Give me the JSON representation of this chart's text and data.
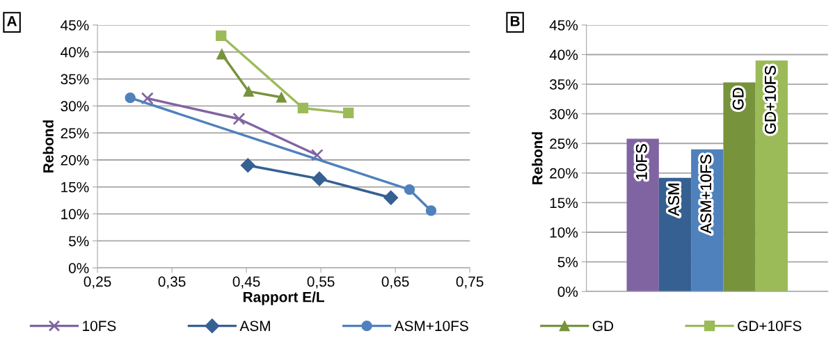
{
  "chart_data": [
    {
      "type": "line",
      "xlabel": "Rapport E/L",
      "ylabel": "Rebond",
      "annotations": [
        "A"
      ],
      "xlim": [
        0.25,
        0.75
      ],
      "xticks": [
        {
          "value": 0.25,
          "label": "0,25"
        },
        {
          "value": 0.35,
          "label": "0,35"
        },
        {
          "value": 0.45,
          "label": "0,45"
        },
        {
          "value": 0.55,
          "label": "0,55"
        },
        {
          "value": 0.65,
          "label": "0,65"
        },
        {
          "value": 0.75,
          "label": "0,75"
        }
      ],
      "ylim": [
        0,
        45
      ],
      "yticks": [
        {
          "value": 0,
          "label": "0%"
        },
        {
          "value": 5,
          "label": "5%"
        },
        {
          "value": 10,
          "label": "10%"
        },
        {
          "value": 15,
          "label": "15%"
        },
        {
          "value": 20,
          "label": "20%"
        },
        {
          "value": 25,
          "label": "25%"
        },
        {
          "value": 30,
          "label": "30%"
        },
        {
          "value": 35,
          "label": "35%"
        },
        {
          "value": 40,
          "label": "40%"
        },
        {
          "value": 45,
          "label": "45%"
        }
      ],
      "grid": "y",
      "legend": "bottom",
      "series": [
        {
          "name": "10FS",
          "color": "#8064a2",
          "marker": "cross",
          "x": [
            0.317,
            0.44,
            0.545
          ],
          "values": [
            31.4,
            27.6,
            20.9
          ]
        },
        {
          "name": "ASM",
          "color": "#366092",
          "marker": "diamond",
          "x": [
            0.452,
            0.548,
            0.644
          ],
          "values": [
            19.0,
            16.5,
            13.0
          ]
        },
        {
          "name": "ASM+10FS",
          "color": "#4f81bd",
          "marker": "circle",
          "x": [
            0.294,
            0.669,
            0.698
          ],
          "values": [
            31.5,
            14.5,
            10.6
          ]
        },
        {
          "name": "GD",
          "color": "#77933c",
          "marker": "triangle",
          "x": [
            0.417,
            0.453,
            0.497
          ],
          "values": [
            39.6,
            32.7,
            31.6
          ]
        },
        {
          "name": "GD+10FS",
          "color": "#9bbb59",
          "marker": "square",
          "x": [
            0.416,
            0.526,
            0.587
          ],
          "values": [
            43.0,
            29.6,
            28.7
          ]
        }
      ]
    },
    {
      "type": "bar",
      "ylabel": "Rebond",
      "annotations": [
        "B"
      ],
      "categories": [
        "10FS",
        "ASM",
        "ASM+10FS",
        "GD",
        "GD+10FS"
      ],
      "values": [
        25.8,
        19.2,
        24.0,
        35.3,
        39.0
      ],
      "colors": [
        "#8064a2",
        "#366092",
        "#4f81bd",
        "#77933c",
        "#9bbb59"
      ],
      "ylim": [
        0,
        45
      ],
      "yticks": [
        {
          "value": 0,
          "label": "0%"
        },
        {
          "value": 5,
          "label": "5%"
        },
        {
          "value": 10,
          "label": "10%"
        },
        {
          "value": 15,
          "label": "15%"
        },
        {
          "value": 20,
          "label": "20%"
        },
        {
          "value": 25,
          "label": "25%"
        },
        {
          "value": 30,
          "label": "30%"
        },
        {
          "value": 35,
          "label": "35%"
        },
        {
          "value": 40,
          "label": "40%"
        },
        {
          "value": 45,
          "label": "45%"
        }
      ],
      "grid": "y",
      "tick_labels": "y"
    }
  ]
}
